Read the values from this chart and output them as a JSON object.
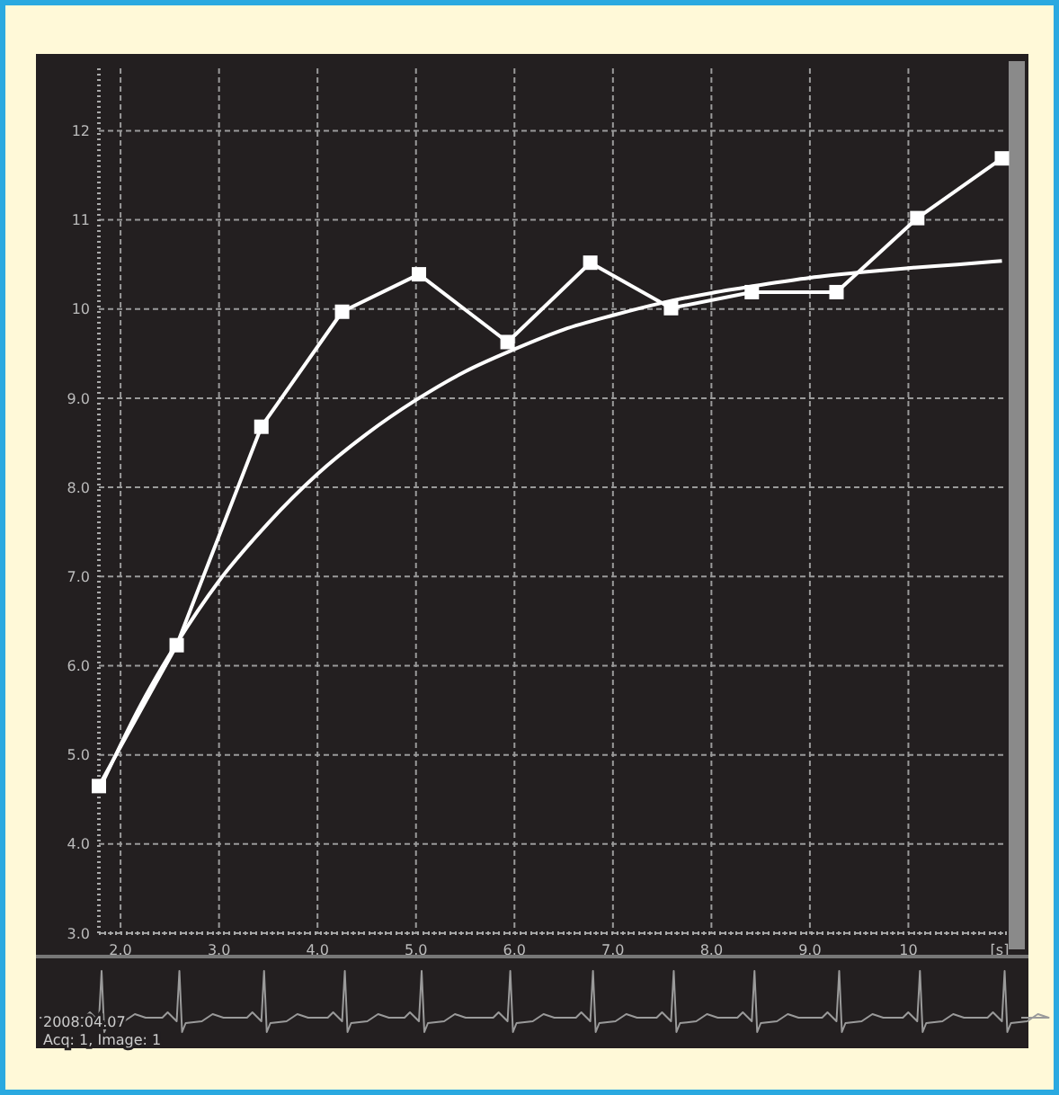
{
  "chart_data": {
    "type": "line",
    "xlabel": "[s]",
    "x": [
      1.78,
      2.57,
      3.43,
      4.25,
      5.03,
      5.93,
      6.77,
      7.59,
      8.41,
      9.27,
      10.09,
      10.95
    ],
    "series": [
      {
        "color": "#ffffff",
        "marker": "square",
        "values": [
          4.65,
          6.23,
          8.68,
          9.97,
          10.39,
          9.63,
          10.52,
          10.01,
          10.19,
          10.19,
          11.02,
          11.69
        ]
      },
      {
        "color": "#ffffff",
        "marker": "none",
        "x": [
          1.78,
          2.2,
          2.57,
          3.0,
          3.5,
          4.0,
          4.5,
          5.0,
          5.5,
          6.0,
          6.5,
          7.0,
          7.5,
          8.0,
          8.5,
          9.0,
          9.5,
          10.0,
          10.5,
          10.95
        ],
        "values": [
          4.6,
          5.55,
          6.25,
          6.95,
          7.6,
          8.15,
          8.6,
          8.98,
          9.3,
          9.55,
          9.77,
          9.93,
          10.07,
          10.18,
          10.27,
          10.35,
          10.41,
          10.46,
          10.5,
          10.54
        ]
      }
    ],
    "xlim": [
      1.78,
      11.0
    ],
    "ylim": [
      3,
      12.7
    ],
    "xticks": [
      {
        "value": 2,
        "label": "2.0"
      },
      {
        "value": 3,
        "label": "3.0"
      },
      {
        "value": 4,
        "label": "4.0"
      },
      {
        "value": 5,
        "label": "5.0"
      },
      {
        "value": 6,
        "label": "6.0"
      },
      {
        "value": 7,
        "label": "7.0"
      },
      {
        "value": 8,
        "label": "8.0"
      },
      {
        "value": 9,
        "label": "9.0"
      },
      10
    ],
    "yticks": [
      {
        "value": 3,
        "label": "3.0"
      },
      {
        "value": 4,
        "label": "4.0"
      },
      {
        "value": 5,
        "label": "5.0"
      },
      {
        "value": 6,
        "label": "6.0"
      },
      {
        "value": 7,
        "label": "7.0"
      },
      {
        "value": 8,
        "label": "8.0"
      },
      {
        "value": 9,
        "label": "9.0"
      },
      10,
      11,
      12
    ],
    "grid": true,
    "line_style": "solid",
    "annotations": [
      "2008.04.07",
      "Acq: 1, Image: 1"
    ]
  }
}
